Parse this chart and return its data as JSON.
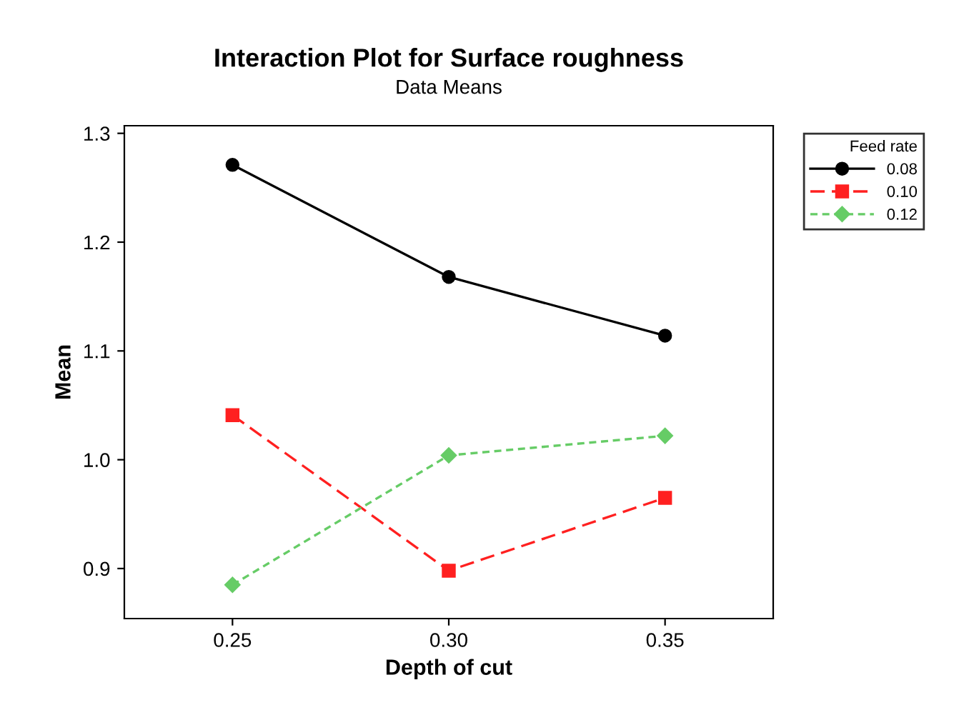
{
  "chart_data": {
    "type": "line",
    "title": "Interaction Plot for Surface roughness",
    "subtitle": "Data Means",
    "xlabel": "Depth of cut",
    "ylabel": "Mean",
    "legend_title": "Feed rate",
    "categories": [
      "0.25",
      "0.30",
      "0.35"
    ],
    "series": [
      {
        "name": "0.08",
        "color": "#000000",
        "values": [
          1.271,
          1.168,
          1.114
        ],
        "marker": "circle",
        "line_style": "solid"
      },
      {
        "name": "0.10",
        "color": "#ff2020",
        "values": [
          1.041,
          0.898,
          0.965
        ],
        "marker": "square",
        "line_style": "dashed"
      },
      {
        "name": "0.12",
        "color": "#66cc66",
        "values": [
          0.885,
          1.004,
          1.022
        ],
        "marker": "diamond",
        "line_style": "dotted"
      }
    ],
    "ylim": [
      0.854,
      1.307
    ],
    "yticks": [
      {
        "value": 0.9,
        "label": "0.9"
      },
      {
        "value": 1.0,
        "label": "1.0"
      },
      {
        "value": 1.1,
        "label": "1.1"
      },
      {
        "value": 1.2,
        "label": "1.2"
      },
      {
        "value": 1.3,
        "label": "1.3"
      }
    ],
    "grid": false,
    "legend": "top right"
  }
}
